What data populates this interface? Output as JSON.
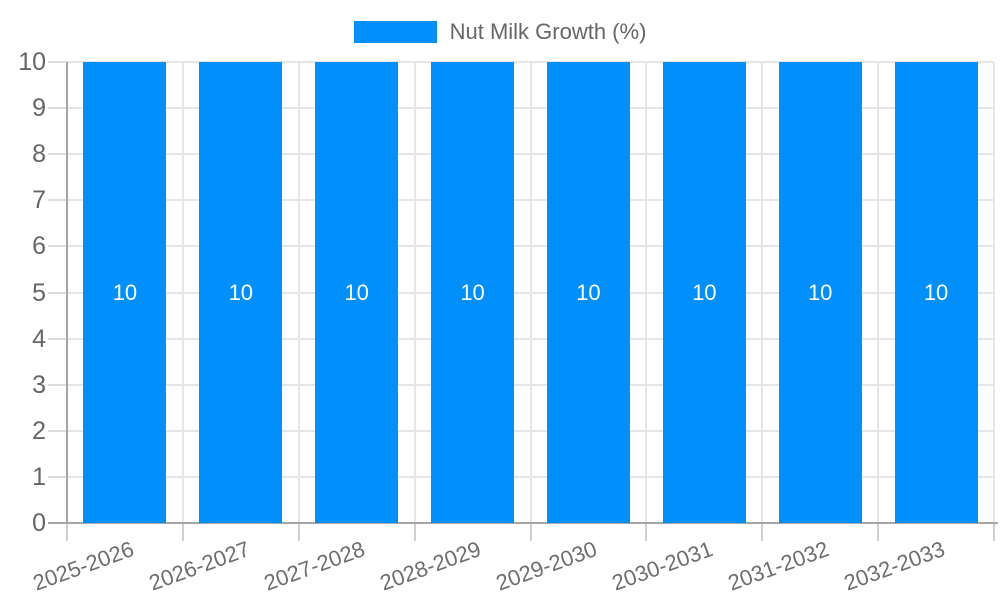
{
  "chart_data": {
    "type": "bar",
    "title": "",
    "categories": [
      "2025-2026",
      "2026-2027",
      "2027-2028",
      "2028-2029",
      "2029-2030",
      "2030-2031",
      "2031-2032",
      "2032-2033"
    ],
    "series": [
      {
        "name": "Nut Milk Growth (%)",
        "values": [
          10,
          10,
          10,
          10,
          10,
          10,
          10,
          10
        ]
      }
    ],
    "bar_value_labels": [
      "10",
      "10",
      "10",
      "10",
      "10",
      "10",
      "10",
      "10"
    ],
    "ylim": [
      0,
      10
    ],
    "ytick_step": 1,
    "ytick_labels": [
      "0",
      "1",
      "2",
      "3",
      "4",
      "5",
      "6",
      "7",
      "8",
      "9",
      "10"
    ],
    "grid": true,
    "legend_position": "top",
    "colors": {
      "bar": "#008FFB",
      "bar_label_text": "#ffffff",
      "axis_text": "#666666",
      "gridline": "#e6e6e6",
      "axis_line": "#a6a6a6",
      "background": "#ffffff"
    }
  }
}
